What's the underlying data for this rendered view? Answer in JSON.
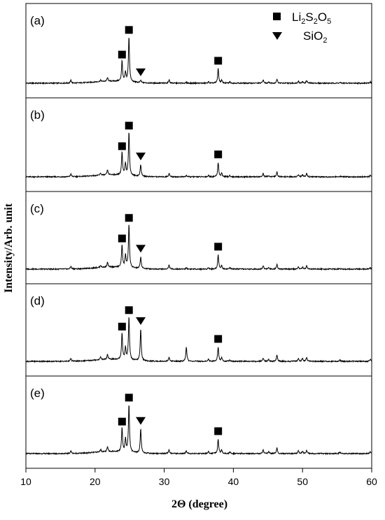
{
  "chart_data": {
    "type": "line",
    "title": "",
    "xlabel": "2Θ (degree)",
    "ylabel": "Intensity/Arb. unit",
    "xlim": [
      10,
      60
    ],
    "xticks": [
      10,
      20,
      30,
      40,
      50,
      60
    ],
    "grid": false,
    "stacked_panels": true,
    "legend": {
      "position": "top-right",
      "entries": [
        {
          "marker": "square",
          "label": "Li",
          "sub1": "2",
          "mid": "S",
          "sub2": "2",
          "mid2": "O",
          "sub3": "5",
          "text": "Li2S2O5"
        },
        {
          "marker": "triangle-down",
          "label": "SiO",
          "sub1": "2",
          "text": "SiO2"
        }
      ]
    },
    "panels": [
      {
        "label": "(a)",
        "baseline": 4,
        "peaks": [
          [
            16.5,
            4
          ],
          [
            20.8,
            2
          ],
          [
            21.8,
            5
          ],
          [
            23.9,
            30
          ],
          [
            24.4,
            13
          ],
          [
            24.9,
            66
          ],
          [
            26.6,
            3
          ],
          [
            30.7,
            5
          ],
          [
            33.2,
            1
          ],
          [
            36.4,
            2
          ],
          [
            37.8,
            21
          ],
          [
            38.3,
            4
          ],
          [
            39.5,
            2
          ],
          [
            44.3,
            5
          ],
          [
            45.1,
            2
          ],
          [
            46.3,
            6
          ],
          [
            49.4,
            3
          ],
          [
            50.0,
            2
          ],
          [
            50.6,
            4
          ],
          [
            55.4,
            1
          ],
          [
            59.8,
            2
          ]
        ],
        "markers": [
          {
            "type": "square",
            "x": 23.9
          },
          {
            "type": "square",
            "x": 24.9
          },
          {
            "type": "triangle-down",
            "x": 26.6
          },
          {
            "type": "square",
            "x": 37.8
          }
        ]
      },
      {
        "label": "(b)",
        "baseline": 3,
        "peaks": [
          [
            16.5,
            4
          ],
          [
            20.8,
            3
          ],
          [
            21.8,
            7
          ],
          [
            23.9,
            33
          ],
          [
            24.4,
            17
          ],
          [
            24.9,
            63
          ],
          [
            26.6,
            17
          ],
          [
            30.7,
            5
          ],
          [
            33.2,
            2
          ],
          [
            36.4,
            2
          ],
          [
            37.8,
            21
          ],
          [
            38.3,
            5
          ],
          [
            39.5,
            2
          ],
          [
            44.3,
            5
          ],
          [
            45.1,
            2
          ],
          [
            46.3,
            7
          ],
          [
            49.4,
            3
          ],
          [
            50.0,
            3
          ],
          [
            50.6,
            5
          ],
          [
            55.4,
            1
          ],
          [
            59.8,
            2
          ]
        ],
        "markers": [
          {
            "type": "square",
            "x": 23.9
          },
          {
            "type": "square",
            "x": 24.9
          },
          {
            "type": "triangle-down",
            "x": 26.6
          },
          {
            "type": "square",
            "x": 37.8
          }
        ]
      },
      {
        "label": "(c)",
        "baseline": 3,
        "peaks": [
          [
            16.5,
            4
          ],
          [
            20.8,
            3
          ],
          [
            21.8,
            7
          ],
          [
            23.9,
            33
          ],
          [
            24.4,
            18
          ],
          [
            24.9,
            63
          ],
          [
            26.6,
            17
          ],
          [
            30.7,
            6
          ],
          [
            33.2,
            2
          ],
          [
            36.4,
            2
          ],
          [
            37.8,
            21
          ],
          [
            38.3,
            5
          ],
          [
            39.5,
            2
          ],
          [
            44.3,
            5
          ],
          [
            45.1,
            2
          ],
          [
            46.3,
            7
          ],
          [
            49.4,
            3
          ],
          [
            50.0,
            3
          ],
          [
            50.6,
            5
          ],
          [
            55.4,
            1
          ],
          [
            59.8,
            2
          ]
        ],
        "markers": [
          {
            "type": "square",
            "x": 23.9
          },
          {
            "type": "square",
            "x": 24.9
          },
          {
            "type": "triangle-down",
            "x": 26.6
          },
          {
            "type": "square",
            "x": 37.8
          }
        ]
      },
      {
        "label": "(d)",
        "baseline": 3,
        "peaks": [
          [
            16.5,
            4
          ],
          [
            20.8,
            4
          ],
          [
            21.8,
            7
          ],
          [
            23.9,
            39
          ],
          [
            24.4,
            17
          ],
          [
            24.9,
            63
          ],
          [
            26.6,
            46
          ],
          [
            30.7,
            6
          ],
          [
            33.2,
            21
          ],
          [
            36.4,
            3
          ],
          [
            37.8,
            21
          ],
          [
            38.3,
            5
          ],
          [
            39.5,
            2
          ],
          [
            44.3,
            5
          ],
          [
            45.1,
            3
          ],
          [
            46.3,
            9
          ],
          [
            49.4,
            4
          ],
          [
            50.0,
            5
          ],
          [
            50.6,
            6
          ],
          [
            55.4,
            2
          ],
          [
            59.8,
            3
          ]
        ],
        "markers": [
          {
            "type": "square",
            "x": 23.9
          },
          {
            "type": "square",
            "x": 24.9
          },
          {
            "type": "triangle-down",
            "x": 26.6
          },
          {
            "type": "square",
            "x": 37.8
          }
        ]
      },
      {
        "label": "(e)",
        "baseline": 3,
        "peaks": [
          [
            16.5,
            4
          ],
          [
            20.8,
            4
          ],
          [
            21.8,
            7
          ],
          [
            23.9,
            35
          ],
          [
            24.4,
            19
          ],
          [
            24.9,
            70
          ],
          [
            26.6,
            35
          ],
          [
            30.7,
            6
          ],
          [
            33.2,
            4
          ],
          [
            36.4,
            3
          ],
          [
            37.8,
            21
          ],
          [
            38.3,
            5
          ],
          [
            39.5,
            2
          ],
          [
            44.3,
            5
          ],
          [
            45.1,
            3
          ],
          [
            46.3,
            8
          ],
          [
            49.4,
            4
          ],
          [
            50.0,
            4
          ],
          [
            50.6,
            5
          ],
          [
            55.4,
            2
          ],
          [
            59.8,
            3
          ]
        ],
        "markers": [
          {
            "type": "square",
            "x": 23.9
          },
          {
            "type": "square",
            "x": 24.9
          },
          {
            "type": "triangle-down",
            "x": 26.6
          },
          {
            "type": "square",
            "x": 37.8
          }
        ]
      }
    ]
  }
}
